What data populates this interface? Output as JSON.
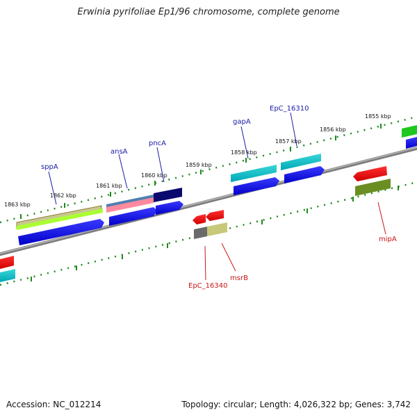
{
  "title": "Erwinia pyrifoliae Ep1/96 chromosome, complete genome",
  "accession_text": "Accession: NC_012214",
  "topology_text": "Topology: circular; Length: 4,026,322 bp; Genes: 3,742",
  "ticks": [
    "1863 kbp",
    "1862 kbp",
    "1861 kbp",
    "1860 kbp",
    "1859 kbp",
    "1858 kbp",
    "1857 kbp",
    "1856 kbp",
    "1855 kbp"
  ],
  "genes": {
    "sppA": "sppA",
    "ansA": "ansA",
    "pncA": "pncA",
    "gapA": "gapA",
    "EpC_16310": "EpC_16310",
    "EpC_16340": "EpC_16340",
    "msrB": "msrB",
    "mipA": "mipA"
  },
  "colors": {
    "backbone": "#8c8c8c",
    "tick": "#1e8a1e",
    "blue_label": "#1a1aa8",
    "red_label": "#c81414"
  }
}
